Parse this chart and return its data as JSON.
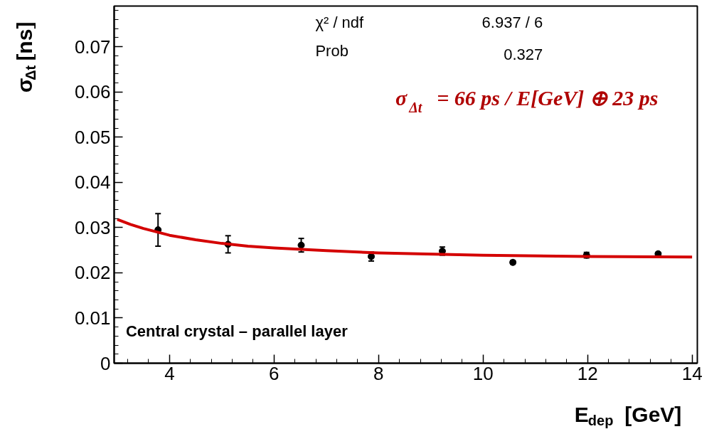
{
  "chart_data": {
    "type": "scatter",
    "xlabel": "E$_{dep}$ [GeV]",
    "ylabel": "σ$_{Δt}$[ns]",
    "xlim": [
      2.94,
      14.1
    ],
    "ylim": [
      0,
      0.079
    ],
    "xticks": [
      4,
      6,
      8,
      10,
      12,
      14
    ],
    "yticks": [
      0,
      0.01,
      0.02,
      0.03,
      0.04,
      0.05,
      0.06,
      0.07
    ],
    "grid": false,
    "series": [
      {
        "marker": "circle",
        "color": "#000000",
        "x": [
          3.78,
          5.12,
          6.52,
          7.86,
          9.22,
          10.57,
          11.98,
          13.35
        ],
        "values": [
          0.0295,
          0.0263,
          0.0261,
          0.0236,
          0.0248,
          0.0223,
          0.0239,
          0.0242
        ],
        "errors": [
          0.0036,
          0.0019,
          0.0015,
          0.001,
          0.0009,
          0.0004,
          0.0006,
          0.0003
        ]
      },
      {
        "type": "line",
        "color": "#d40000",
        "line_style": "solid",
        "x": [
          3,
          3.25,
          3.5,
          4,
          4.5,
          5,
          5.5,
          6,
          7,
          8,
          10,
          12,
          14
        ],
        "values": [
          0.0318,
          0.0307,
          0.0298,
          0.0283,
          0.0273,
          0.0265,
          0.0259,
          0.0255,
          0.0249,
          0.0244,
          0.0239,
          0.0236,
          0.0235
        ]
      }
    ],
    "annotations": [
      "χ² / ndf",
      "6.937 / 6",
      "Prob",
      "0.327",
      "σ$_{Δt}$ = 66 ps / E[GeV] ⊕ 23 ps",
      "Central crystal – parallel layer"
    ]
  }
}
